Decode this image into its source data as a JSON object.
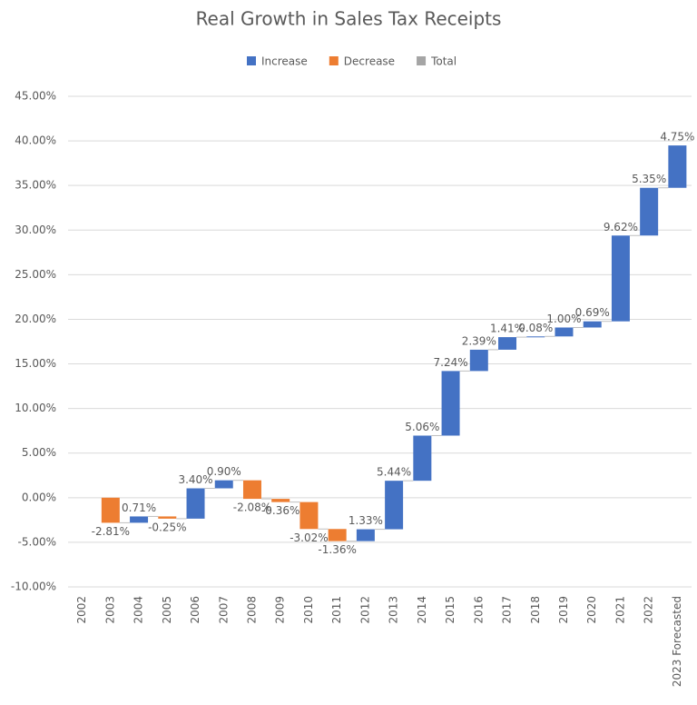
{
  "chart_data": {
    "type": "waterfall",
    "title": "Real Growth in Sales Tax Receipts",
    "legend": [
      {
        "name": "Increase",
        "color": "#4472c4"
      },
      {
        "name": "Decrease",
        "color": "#ed7d31"
      },
      {
        "name": "Total",
        "color": "#a5a5a5"
      }
    ],
    "categories": [
      "2002",
      "2003",
      "2004",
      "2005",
      "2006",
      "2007",
      "2008",
      "2009",
      "2010",
      "2011",
      "2012",
      "2013",
      "2014",
      "2015",
      "2016",
      "2017",
      "2018",
      "2019",
      "2020",
      "2021",
      "2022",
      "2023 Forecasted"
    ],
    "values": [
      null,
      -2.81,
      0.71,
      -0.25,
      3.4,
      0.9,
      -2.08,
      -0.36,
      -3.02,
      -1.36,
      1.33,
      5.44,
      5.06,
      7.24,
      2.39,
      1.41,
      0.08,
      1.0,
      0.69,
      9.62,
      5.35,
      4.75
    ],
    "value_labels": [
      null,
      "-2.81%",
      "0.71%",
      "-0.25%",
      "3.40%",
      "0.90%",
      "-2.08%",
      "-0.36%",
      "-3.02%",
      "-1.36%",
      "1.33%",
      "5.44%",
      "5.06%",
      "7.24%",
      "2.39%",
      "1.41%",
      "0.08%",
      "1.00%",
      "0.69%",
      "9.62%",
      "5.35%",
      "4.75%"
    ],
    "ylim": [
      -10,
      45
    ],
    "yticks": [
      {
        "value": -10,
        "label": "-10.00%"
      },
      {
        "value": -5,
        "label": "-5.00%"
      },
      {
        "value": 0,
        "label": "0.00%"
      },
      {
        "value": 5,
        "label": "5.00%"
      },
      {
        "value": 10,
        "label": "10.00%"
      },
      {
        "value": 15,
        "label": "15.00%"
      },
      {
        "value": 20,
        "label": "20.00%"
      },
      {
        "value": 25,
        "label": "25.00%"
      },
      {
        "value": 30,
        "label": "30.00%"
      },
      {
        "value": 35,
        "label": "35.00%"
      },
      {
        "value": 40,
        "label": "40.00%"
      },
      {
        "value": 45,
        "label": "45.00%"
      }
    ],
    "grid": true
  }
}
